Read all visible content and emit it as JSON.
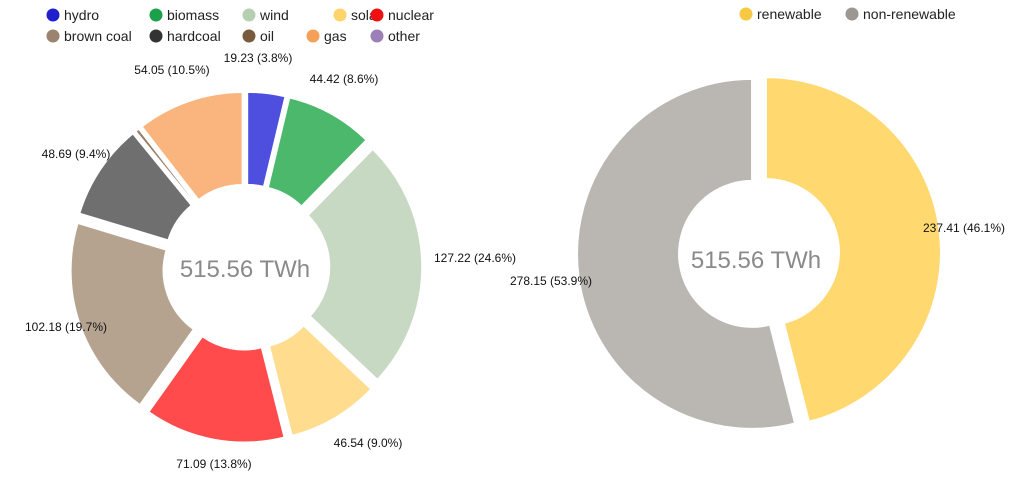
{
  "chart_data": [
    {
      "type": "pie",
      "variant": "donut",
      "center_label": "515.56 TWh",
      "legend_position": "top-left",
      "legend": [
        {
          "name": "hydro",
          "color": "#1f1fcc"
        },
        {
          "name": "biomass",
          "color": "#1aa14a"
        },
        {
          "name": "wind",
          "color": "#b5cfb0"
        },
        {
          "name": "solar",
          "color": "#ffd56b"
        },
        {
          "name": "nuclear",
          "color": "#ee1111"
        },
        {
          "name": "brown coal",
          "color": "#9a8470"
        },
        {
          "name": "hardcoal",
          "color": "#333333"
        },
        {
          "name": "oil",
          "color": "#7a5a3c"
        },
        {
          "name": "gas",
          "color": "#f5a05a"
        },
        {
          "name": "other",
          "color": "#9c7fb8"
        }
      ],
      "slices": [
        {
          "name": "hydro",
          "value": 19.23,
          "percent": 3.8,
          "label": "19.23 (3.8%)",
          "color": "#4f4fdf"
        },
        {
          "name": "biomass",
          "value": 44.42,
          "percent": 8.6,
          "label": "44.42 (8.6%)",
          "color": "#4cb86c"
        },
        {
          "name": "wind",
          "value": 127.22,
          "percent": 24.6,
          "label": "127.22 (24.6%)",
          "color": "#c8d9c3"
        },
        {
          "name": "solar",
          "value": 46.54,
          "percent": 9.0,
          "label": "46.54 (9.0%)",
          "color": "#ffdc8e"
        },
        {
          "name": "nuclear",
          "value": 71.09,
          "percent": 13.8,
          "label": "71.09 (13.8%)",
          "color": "#ff4b4b"
        },
        {
          "name": "brown coal",
          "value": 102.18,
          "percent": 19.7,
          "label": "102.18 (19.7%)",
          "color": "#b5a390"
        },
        {
          "name": "hardcoal",
          "value": 48.69,
          "percent": 9.4,
          "label": "48.69 (9.4%)",
          "color": "#6f6f6f"
        },
        {
          "name": "oil",
          "value": 2.14,
          "percent": 0.4,
          "label": "",
          "color": "#9a8068"
        },
        {
          "name": "gas",
          "value": 54.05,
          "percent": 10.5,
          "label": "54.05 (10.5%)",
          "color": "#fab47e"
        },
        {
          "name": "other",
          "value": 0.0,
          "percent": 0.0,
          "label": "",
          "color": "#b39bcc"
        }
      ]
    },
    {
      "type": "pie",
      "variant": "donut",
      "center_label": "515.56 TWh",
      "legend_position": "top-right",
      "legend": [
        {
          "name": "renewable",
          "color": "#f7c844"
        },
        {
          "name": "non-renewable",
          "color": "#9d9792"
        }
      ],
      "slices": [
        {
          "name": "renewable",
          "value": 237.41,
          "percent": 46.1,
          "label": "237.41 (46.1%)",
          "color": "#ffd970"
        },
        {
          "name": "non-renewable",
          "value": 278.15,
          "percent": 53.9,
          "label": "278.15 (53.9%)",
          "color": "#bab6b2"
        }
      ]
    }
  ]
}
